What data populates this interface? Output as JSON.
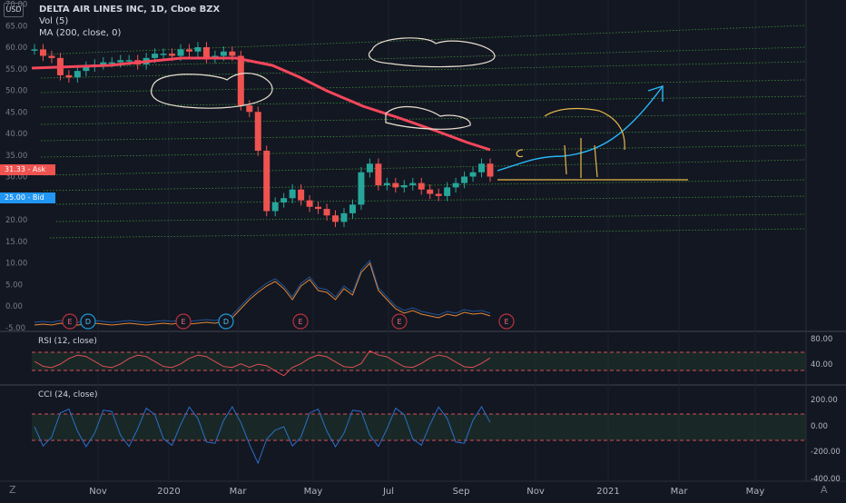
{
  "header": {
    "title": "DELTA AIR LINES INC, 1D, Cboe BZX",
    "volume_label": "Vol (5)",
    "ma_label": "MA (200, close, 0)",
    "currency": "USD"
  },
  "price_tags": [
    {
      "text": "31.33 - Ask",
      "color": "#ef5350"
    },
    {
      "text": "25.00 - Bid",
      "color": "#2196f3"
    }
  ],
  "panes": {
    "rsi_label": "RSI (12, close)",
    "cci_label": "CCI (24, close)"
  },
  "bottom": {
    "tz": "Z",
    "auto": "A"
  },
  "colors": {
    "background": "#131722",
    "up": "#26a69a",
    "down": "#ef5350",
    "ma": "#f4475c",
    "channel": "#2e7d32",
    "rsi": "#e04d57",
    "cci": "#2a6fc9",
    "earnings": "#b8323e",
    "dividend": "#1c9ad6"
  },
  "icons": {
    "earnings_marker": "letter-E-circle",
    "dividend_marker": "letter-D-circle"
  },
  "chart_data": [
    {
      "type": "candlestick",
      "title": "DELTA AIR LINES INC, 1D, Cboe BZX",
      "x_ticks": [
        "Nov",
        "2020",
        "Mar",
        "May",
        "Jul",
        "Sep",
        "Nov",
        "2021",
        "Mar",
        "May"
      ],
      "y_ticks": [
        70.0,
        65.0,
        60.0,
        55.0,
        50.0,
        45.0,
        40.0,
        35.0,
        30.0,
        25.0,
        20.0,
        15.0,
        10.0,
        5.0,
        0.0,
        -5.0
      ],
      "ylim": [
        -5,
        70
      ],
      "x": [
        "2019-09-09",
        "2019-09-16",
        "2019-09-23",
        "2019-09-30",
        "2019-10-07",
        "2019-10-14",
        "2019-10-21",
        "2019-10-28",
        "2019-11-04",
        "2019-11-11",
        "2019-11-18",
        "2019-11-25",
        "2019-12-02",
        "2019-12-09",
        "2019-12-16",
        "2019-12-23",
        "2019-12-30",
        "2020-01-06",
        "2020-01-13",
        "2020-01-20",
        "2020-01-27",
        "2020-02-03",
        "2020-02-10",
        "2020-02-17",
        "2020-02-24",
        "2020-03-02",
        "2020-03-09",
        "2020-03-16",
        "2020-03-23",
        "2020-03-30",
        "2020-04-06",
        "2020-04-13",
        "2020-04-20",
        "2020-04-27",
        "2020-05-04",
        "2020-05-11",
        "2020-05-18",
        "2020-05-25",
        "2020-06-01",
        "2020-06-08",
        "2020-06-15",
        "2020-06-22",
        "2020-06-29",
        "2020-07-06",
        "2020-07-13",
        "2020-07-20",
        "2020-07-27",
        "2020-08-03",
        "2020-08-10",
        "2020-08-17",
        "2020-08-24",
        "2020-08-31",
        "2020-09-07",
        "2020-09-14"
      ],
      "close": [
        59.5,
        58.0,
        57.5,
        53.5,
        53.0,
        54.5,
        55.5,
        56.0,
        56.5,
        56.5,
        57.0,
        57.0,
        56.0,
        57.5,
        58.5,
        58.5,
        58.0,
        59.5,
        59.0,
        60.0,
        57.5,
        58.0,
        59.0,
        58.0,
        46.5,
        45.0,
        36.0,
        22.0,
        24.0,
        25.0,
        27.0,
        24.5,
        23.0,
        22.5,
        21.0,
        19.5,
        21.5,
        23.5,
        31.0,
        33.0,
        28.0,
        28.5,
        27.5,
        28.0,
        28.5,
        27.0,
        26.0,
        25.5,
        27.5,
        28.5,
        30.0,
        31.0,
        33.0,
        30.0
      ],
      "ma200_x_range": [
        "2019-09-09",
        "2020-09-14"
      ],
      "ma200_value_range": [
        55,
        36
      ],
      "indicators": [
        {
          "name": "Vol (5)",
          "y_ticks": [
            15.0,
            10.0,
            5.0,
            0.0,
            -5.0
          ]
        },
        {
          "name": "RSI (12, close)",
          "y_ticks": [
            80.0,
            40.0
          ]
        },
        {
          "name": "CCI (24, close)",
          "y_ticks": [
            200.0,
            0.0,
            -200.0,
            -400.0
          ]
        }
      ],
      "event_markers": [
        "E",
        "D",
        "E",
        "D",
        "E",
        "E",
        "E"
      ]
    }
  ]
}
